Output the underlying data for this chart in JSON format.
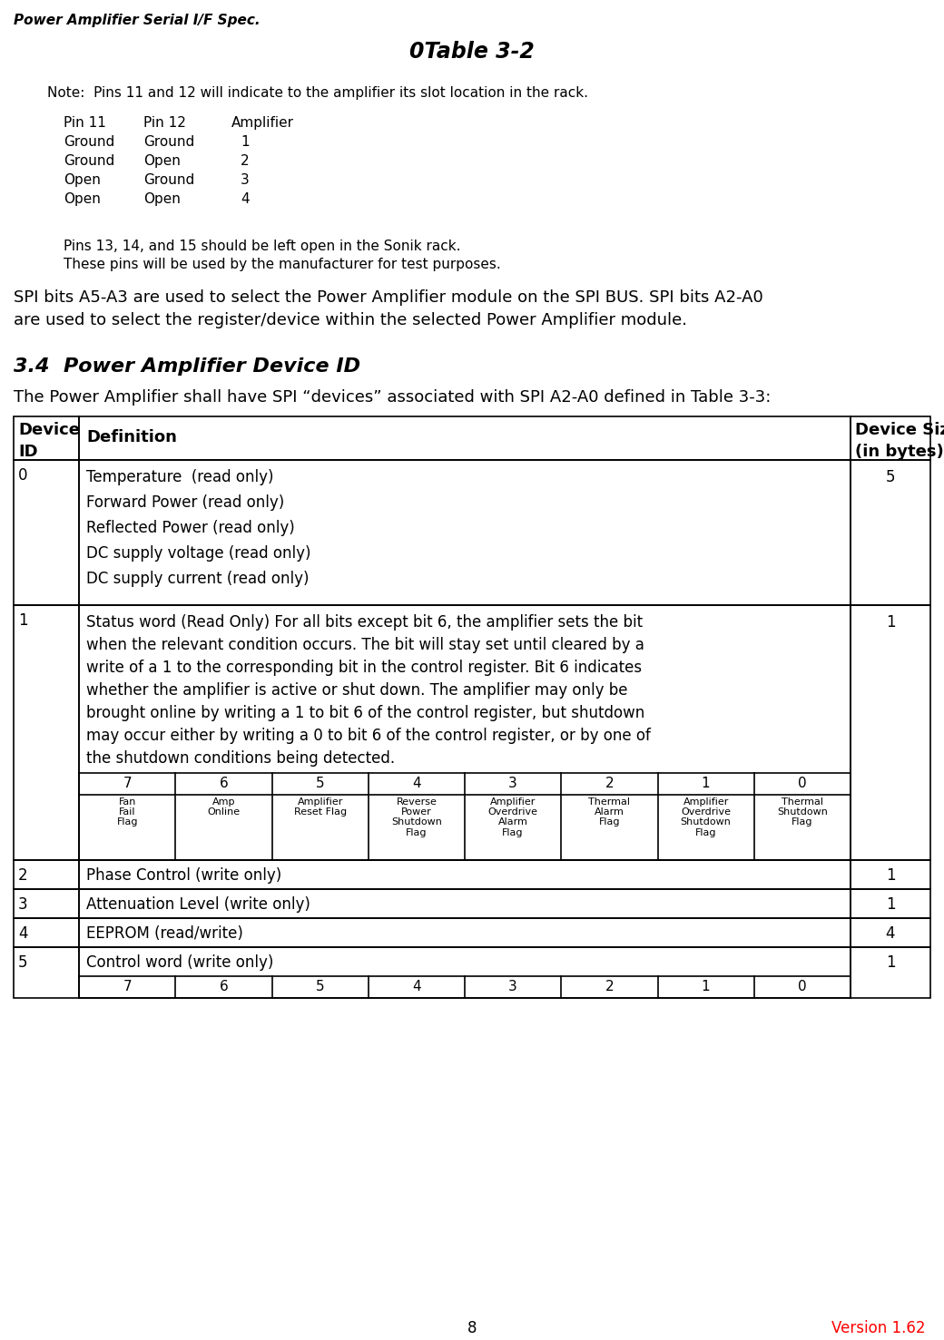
{
  "header_text": "Power Amplifier Serial I/F Spec.",
  "page_number": "8",
  "version_text": "Version 1.62",
  "title": "0Table 3-2",
  "note1": "Note:  Pins 11 and 12 will indicate to the amplifier its slot location in the rack.",
  "pin_header": [
    "Pin 11",
    "Pin 12",
    "Amplifier"
  ],
  "pin_rows": [
    [
      "Ground",
      "Ground",
      "1"
    ],
    [
      "Ground",
      "Open",
      "2"
    ],
    [
      "Open",
      "Ground",
      "3"
    ],
    [
      "Open",
      "Open",
      "4"
    ]
  ],
  "note2": "Pins 13, 14, and 15 should be left open in the Sonik rack.",
  "note3": "These pins will be used by the manufacturer for test purposes.",
  "spi_text1": "SPI bits A5-A3 are used to select the Power Amplifier module on the SPI BUS. SPI bits A2-A0",
  "spi_text2": "are used to select the register/device within the selected Power Amplifier module.",
  "section_title": "3.4  Power Amplifier Device ID",
  "section_intro": "The Power Amplifier shall have SPI “devices” associated with SPI A2-A0 defined in Table 3-3:",
  "table_rows": [
    {
      "id": "0",
      "lines": [
        "Temperature  (read only)",
        "Forward Power (read only)",
        "Reflected Power (read only)",
        "DC supply voltage (read only)",
        "DC supply current (read only)"
      ],
      "size": "5"
    },
    {
      "id": "1",
      "lines": [
        "Status word (Read Only) For all bits except bit 6, the amplifier sets the bit",
        "when the relevant condition occurs. The bit will stay set until cleared by a",
        "write of a 1 to the corresponding bit in the control register. Bit 6 indicates",
        "whether the amplifier is active or shut down. The amplifier may only be",
        "brought online by writing a 1 to bit 6 of the control register, but shutdown",
        "may occur either by writing a 0 to bit 6 of the control register, or by one of",
        "the shutdown conditions being detected."
      ],
      "size": "1",
      "has_bit_table": true,
      "bit_numbers": [
        "7",
        "6",
        "5",
        "4",
        "3",
        "2",
        "1",
        "0"
      ],
      "bit_labels": [
        "Fan\nFail\nFlag",
        "Amp\nOnline",
        "Amplifier\nReset Flag",
        "Reverse\nPower\nShutdown\nFlag",
        "Amplifier\nOverdrive\nAlarm\nFlag",
        "Thermal\nAlarm\nFlag",
        "Amplifier\nOverdrive\nShutdown\nFlag",
        "Thermal\nShutdown\nFlag"
      ]
    },
    {
      "id": "2",
      "lines": [
        "Phase Control (write only)"
      ],
      "size": "1"
    },
    {
      "id": "3",
      "lines": [
        "Attenuation Level (write only)"
      ],
      "size": "1"
    },
    {
      "id": "4",
      "lines": [
        "EEPROM (read/write)"
      ],
      "size": "4"
    },
    {
      "id": "5",
      "lines": [
        "Control word (write only)"
      ],
      "size": "1",
      "has_bit_table": true,
      "bit_numbers": [
        "7",
        "6",
        "5",
        "4",
        "3",
        "2",
        "1",
        "0"
      ],
      "bit_labels": []
    }
  ],
  "bg_color": "#ffffff",
  "text_color": "#000000"
}
